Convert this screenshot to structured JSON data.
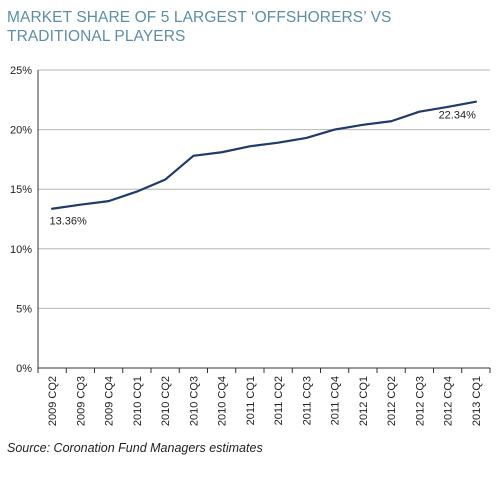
{
  "title": "MARKET SHARE OF 5 LARGEST ‘OFFSHORERS’ VS TRADITIONAL PLAYERS",
  "source": "Source: Coronation Fund Managers estimates",
  "colors": {
    "title": "#5b8ea6",
    "line": "#1f3a6b",
    "grid": "#b5b5b5",
    "axis": "#333333"
  },
  "chart_data": {
    "type": "line",
    "title": "MARKET SHARE OF 5 LARGEST ‘OFFSHORERS’ VS TRADITIONAL PLAYERS",
    "xlabel": "",
    "ylabel": "",
    "ylim": [
      0,
      25
    ],
    "y_ticks": [
      0,
      5,
      10,
      15,
      20,
      25
    ],
    "y_tick_labels": [
      "0%",
      "5%",
      "10%",
      "15%",
      "20%",
      "25%"
    ],
    "grid": "horizontal",
    "categories": [
      "2009 CQ2",
      "2009 CQ3",
      "2009 CQ4",
      "2010 CQ1",
      "2010 CQ2",
      "2010 CQ3",
      "2010 CQ4",
      "2011 CQ1",
      "2011 CQ2",
      "2011 CQ3",
      "2011 CQ4",
      "2012 CQ1",
      "2012 CQ2",
      "2012 CQ3",
      "2012 CQ4",
      "2013 CQ1"
    ],
    "series": [
      {
        "values": [
          13.36,
          13.7,
          14.0,
          14.8,
          15.8,
          17.8,
          18.1,
          18.6,
          18.9,
          19.3,
          20.0,
          20.4,
          20.7,
          21.5,
          21.9,
          22.34
        ]
      }
    ],
    "data_labels": [
      {
        "index": 0,
        "text": "13.36%"
      },
      {
        "index": 15,
        "text": "22.34%"
      }
    ]
  }
}
